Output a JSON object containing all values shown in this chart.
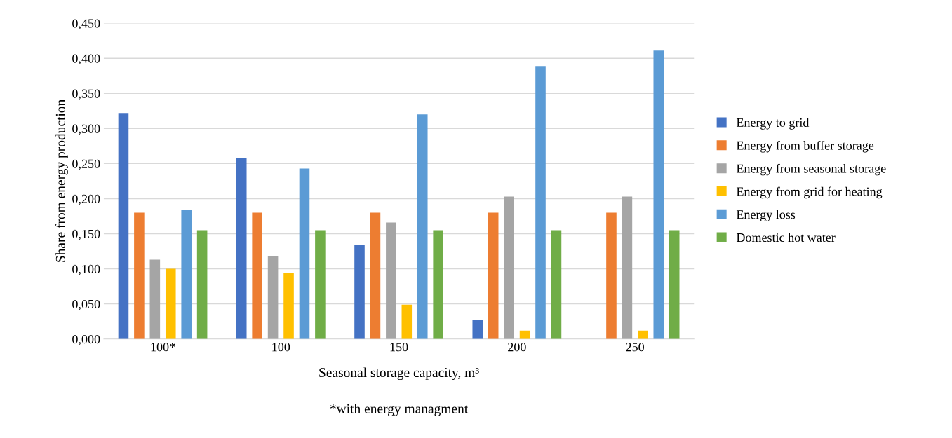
{
  "chart_data": {
    "type": "bar",
    "xlabel": "Seasonal storage capacity, m³",
    "ylabel": "Share from energy production",
    "annotations": [
      "*with energy managment"
    ],
    "categories": [
      "100*",
      "100",
      "150",
      "200",
      "250"
    ],
    "series": [
      {
        "name": "Energy to grid",
        "color": "#4472c4",
        "values": [
          0.322,
          0.258,
          0.134,
          0.027,
          0
        ]
      },
      {
        "name": "Energy from buffer storage",
        "color": "#ed7d31",
        "values": [
          0.18,
          0.18,
          0.18,
          0.18,
          0.18
        ]
      },
      {
        "name": "Energy from seasonal storage",
        "color": "#a5a5a5",
        "values": [
          0.113,
          0.118,
          0.166,
          0.203,
          0.203
        ]
      },
      {
        "name": "Energy from grid for heating",
        "color": "#ffc000",
        "values": [
          0.1,
          0.094,
          0.049,
          0.012,
          0.012
        ]
      },
      {
        "name": "Energy loss",
        "color": "#5b9bd5",
        "values": [
          0.184,
          0.243,
          0.32,
          0.389,
          0.411
        ]
      },
      {
        "name": "Domestic hot water",
        "color": "#70ad47",
        "values": [
          0.155,
          0.155,
          0.155,
          0.155,
          0.155
        ]
      }
    ],
    "ylim": [
      0,
      0.45
    ],
    "yticks": [
      {
        "value": 0,
        "label": "0,000"
      },
      {
        "value": 0.05,
        "label": "0,050"
      },
      {
        "value": 0.1,
        "label": "0,100"
      },
      {
        "value": 0.15,
        "label": "0,150"
      },
      {
        "value": 0.2,
        "label": "0,200"
      },
      {
        "value": 0.25,
        "label": "0,250"
      },
      {
        "value": 0.3,
        "label": "0,300"
      },
      {
        "value": 0.35,
        "label": "0,350"
      },
      {
        "value": 0.4,
        "label": "0,400"
      },
      {
        "value": 0.45,
        "label": "0,450"
      }
    ],
    "grid": "y",
    "legend": "right"
  }
}
